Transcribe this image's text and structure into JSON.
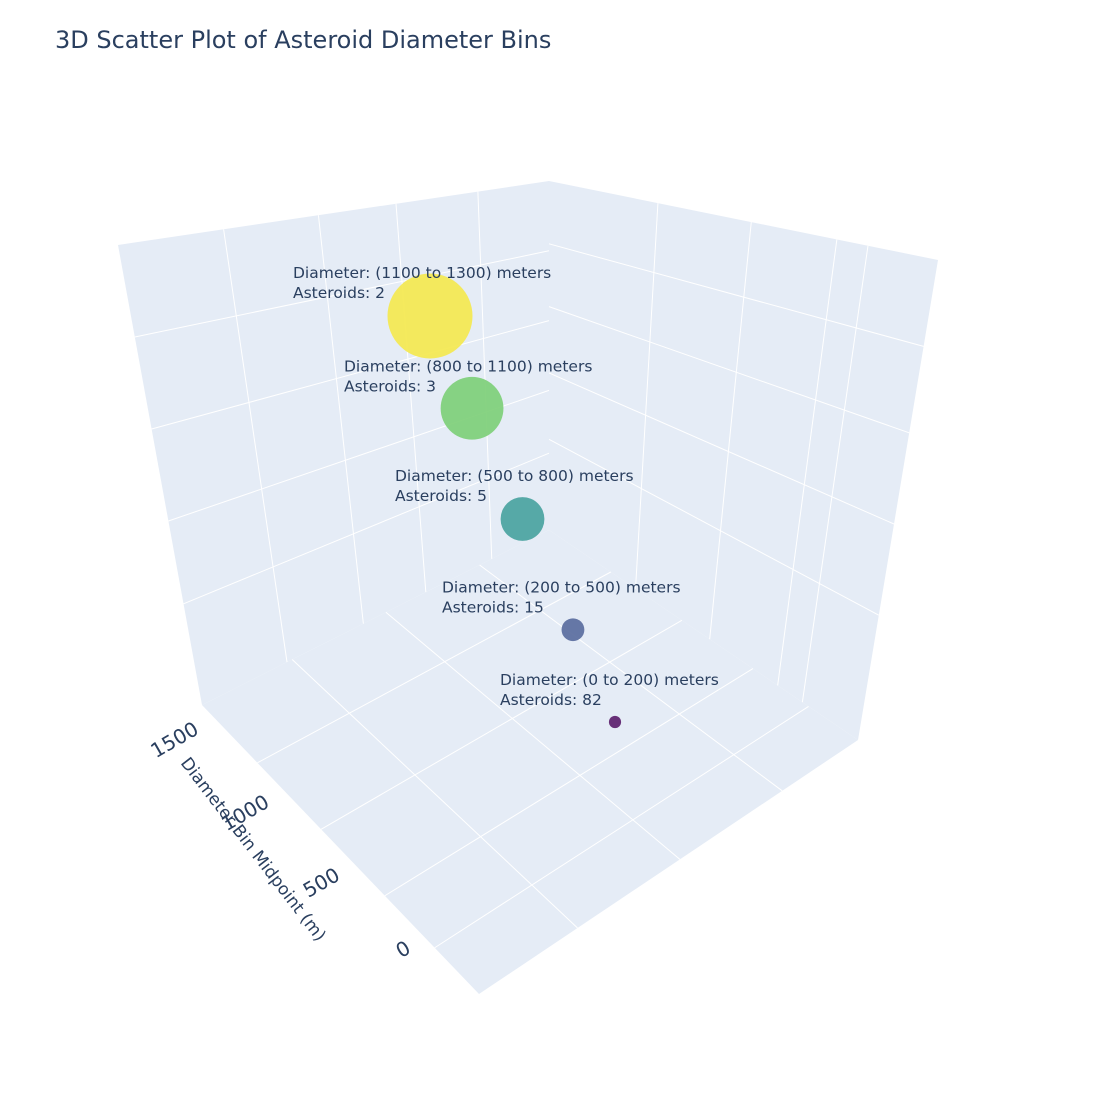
{
  "page": {
    "title": "3D Scatter Plot of Asteroid Diameter Bins"
  },
  "chart_data": {
    "type": "scatter3d",
    "title": "3D Scatter Plot of Asteroid Diameter Bins",
    "axes": {
      "z": {
        "title": "Diameter Bin Midpoint (m)",
        "ticks": [
          "0",
          "500",
          "1000",
          "1500"
        ]
      }
    },
    "colorscale": "viridis",
    "points": [
      {
        "bin": "(0 to 200)",
        "midpoint": 100,
        "count": 82,
        "color": "#5c1f6c",
        "line1": "Diameter: (0 to 200) meters",
        "line2": "Asteroids: 82"
      },
      {
        "bin": "(200 to 500)",
        "midpoint": 350,
        "count": 15,
        "color": "#5a6c9e",
        "line1": "Diameter: (200 to 500) meters",
        "line2": "Asteroids: 15"
      },
      {
        "bin": "(500 to 800)",
        "midpoint": 650,
        "count": 5,
        "color": "#4aa39f",
        "line1": "Diameter: (500 to 800) meters",
        "line2": "Asteroids: 5"
      },
      {
        "bin": "(800 to 1100)",
        "midpoint": 950,
        "count": 3,
        "color": "#7ecf78",
        "line1": "Diameter: (800 to 1100) meters",
        "line2": "Asteroids: 3"
      },
      {
        "bin": "(1100 to 1300)",
        "midpoint": 1200,
        "count": 2,
        "color": "#f4e84f",
        "line1": "Diameter: (1100 to 1300) meters",
        "line2": "Asteroids: 2"
      }
    ]
  }
}
